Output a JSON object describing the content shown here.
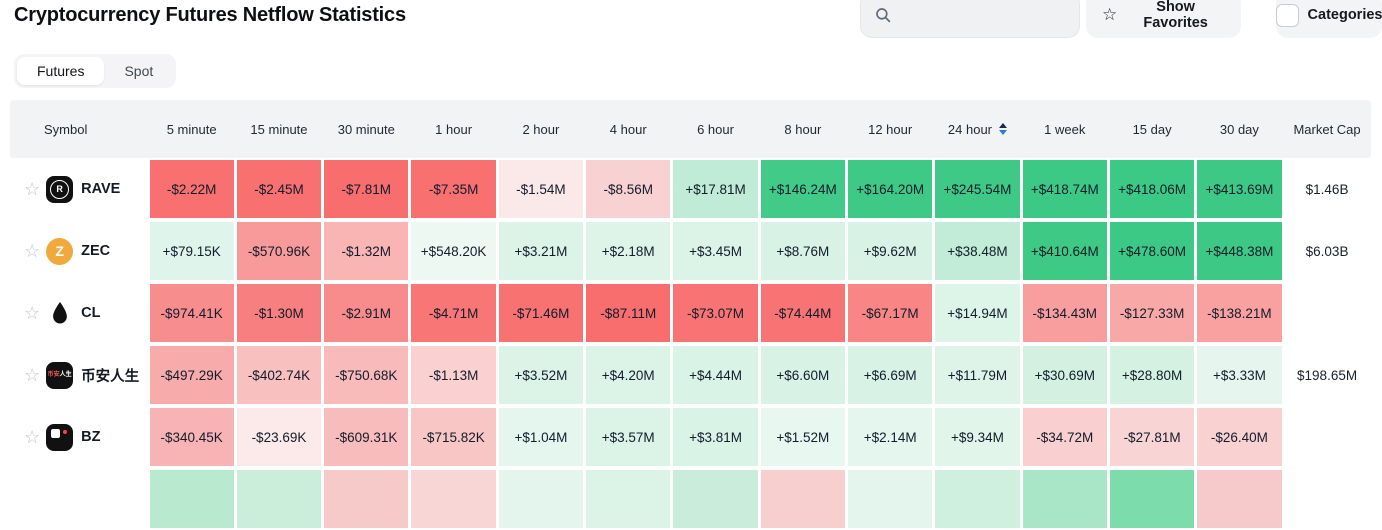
{
  "header": {
    "title": "Cryptocurrency Futures Netflow Statistics",
    "search_value": "",
    "show_favorites_label": "Show Favorites",
    "categories_label": "Categories"
  },
  "tabs": [
    {
      "label": "Futures",
      "active": true
    },
    {
      "label": "Spot",
      "active": false
    }
  ],
  "colors": {
    "positive_strong": "#3cc985",
    "negative_strong": "#f86e6e",
    "sort_arrow_up": "#1c2a45",
    "sort_arrow_down": "#2e78dc",
    "header_bg": "#f1f3f5"
  },
  "table": {
    "columns": [
      "Symbol",
      "5 minute",
      "15 minute",
      "30 minute",
      "1 hour",
      "2 hour",
      "4 hour",
      "6 hour",
      "8 hour",
      "12 hour",
      "24 hour",
      "1 week",
      "15 day",
      "30 day",
      "Market Cap"
    ],
    "sort_column": "24 hour",
    "rows": [
      {
        "symbol": "RAVE",
        "icon": {
          "name": "rave-coin-icon",
          "type": "ring-letter",
          "bg": "#111111",
          "fg": "#ffffff",
          "letter": "R"
        },
        "values": [
          "-$2.22M",
          "-$2.45M",
          "-$7.81M",
          "-$7.35M",
          "-$1.54M",
          "-$8.56M",
          "+$17.81M",
          "+$146.24M",
          "+$164.20M",
          "+$245.54M",
          "+$418.74M",
          "+$418.06M",
          "+$413.69M"
        ],
        "colors": [
          "#f87070",
          "#f87070",
          "#f86e6e",
          "#f87070",
          "#fbe9ea",
          "#f8d2d2",
          "#c0ebd6",
          "#41ca88",
          "#3fc986",
          "#3eca86",
          "#3cc985",
          "#3cc985",
          "#3dc985"
        ],
        "market_cap": "$1.46B"
      },
      {
        "symbol": "ZEC",
        "icon": {
          "name": "zec-coin-icon",
          "type": "circle-letter",
          "bg": "#f0a93c",
          "fg": "#ffffff",
          "letter": "Z"
        },
        "values": [
          "+$79.15K",
          "-$570.96K",
          "-$1.32M",
          "+$548.20K",
          "+$3.21M",
          "+$2.18M",
          "+$3.45M",
          "+$8.76M",
          "+$9.62M",
          "+$38.48M",
          "+$410.64M",
          "+$478.60M",
          "+$448.38M"
        ],
        "colors": [
          "#dff4ea",
          "#f89a9a",
          "#f9b4b4",
          "#eef8f3",
          "#dcf3e8",
          "#def4e9",
          "#dcf3e8",
          "#d8f2e5",
          "#d9f2e6",
          "#c2ecd7",
          "#3ec985",
          "#3cc985",
          "#3dc985"
        ],
        "market_cap": "$6.03B"
      },
      {
        "symbol": "CL",
        "icon": {
          "name": "cl-oil-drop-icon",
          "type": "droplet",
          "fg": "#111111"
        },
        "values": [
          "-$974.41K",
          "-$1.30M",
          "-$2.91M",
          "-$4.71M",
          "-$71.46M",
          "-$87.11M",
          "-$73.07M",
          "-$74.44M",
          "-$67.17M",
          "+$14.94M",
          "-$134.43M",
          "-$127.33M",
          "-$138.21M"
        ],
        "colors": [
          "#f88d8d",
          "#f87f7f",
          "#f88b8b",
          "#f87676",
          "#f87272",
          "#f86e6e",
          "#f87474",
          "#f87373",
          "#f98585",
          "#ddf4e9",
          "#f99e9e",
          "#f9a8a8",
          "#f9a1a1"
        ],
        "market_cap": ""
      },
      {
        "symbol": "币安人生",
        "icon": {
          "name": "binance-life-coin-icon",
          "type": "cn-text",
          "bg": "#111111",
          "text1": "币安",
          "fg1": "#ff5a5a",
          "text2": "人生",
          "fg2": "#ffffff"
        },
        "values": [
          "-$497.29K",
          "-$402.74K",
          "-$750.68K",
          "-$1.13M",
          "+$3.52M",
          "+$4.20M",
          "+$4.44M",
          "+$6.60M",
          "+$6.69M",
          "+$11.79M",
          "+$30.69M",
          "+$28.80M",
          "+$3.33M"
        ],
        "colors": [
          "#f8abab",
          "#f9c0c0",
          "#f9baba",
          "#fad0d0",
          "#dcf3e8",
          "#dcf3e8",
          "#daf3e7",
          "#d9f2e6",
          "#d9f2e6",
          "#def4e9",
          "#d3f0e1",
          "#d5f1e2",
          "#e6f6ee"
        ],
        "market_cap": "$198.65M"
      },
      {
        "symbol": "BZ",
        "icon": {
          "name": "bz-coin-icon",
          "type": "bz-mark",
          "bg": "#111111"
        },
        "values": [
          "-$340.45K",
          "-$23.69K",
          "-$609.31K",
          "-$715.82K",
          "+$1.04M",
          "+$3.57M",
          "+$3.81M",
          "+$1.52M",
          "+$2.14M",
          "+$9.34M",
          "-$34.72M",
          "-$27.81M",
          "-$26.40M"
        ],
        "colors": [
          "#f8b4b4",
          "#fce9e9",
          "#f9bcbc",
          "#f9c6c6",
          "#e5f6ee",
          "#dcf3e8",
          "#daf3e7",
          "#e8f7f0",
          "#e4f6ed",
          "#e1f5eb",
          "#f9cfcf",
          "#f9d4d4",
          "#f9d1d1"
        ],
        "market_cap": ""
      }
    ],
    "partial_row_colors": [
      "#b9eacf",
      "#cbeeda",
      "#f7caca",
      "#f9d6d6",
      "#e3f5ec",
      "#dcf3e8",
      "#c9edda",
      "#f7cfcf",
      "#e3f5ec",
      "#cfefdf",
      "#a9e6c8",
      "#7ddcab",
      "#f6caca"
    ]
  }
}
